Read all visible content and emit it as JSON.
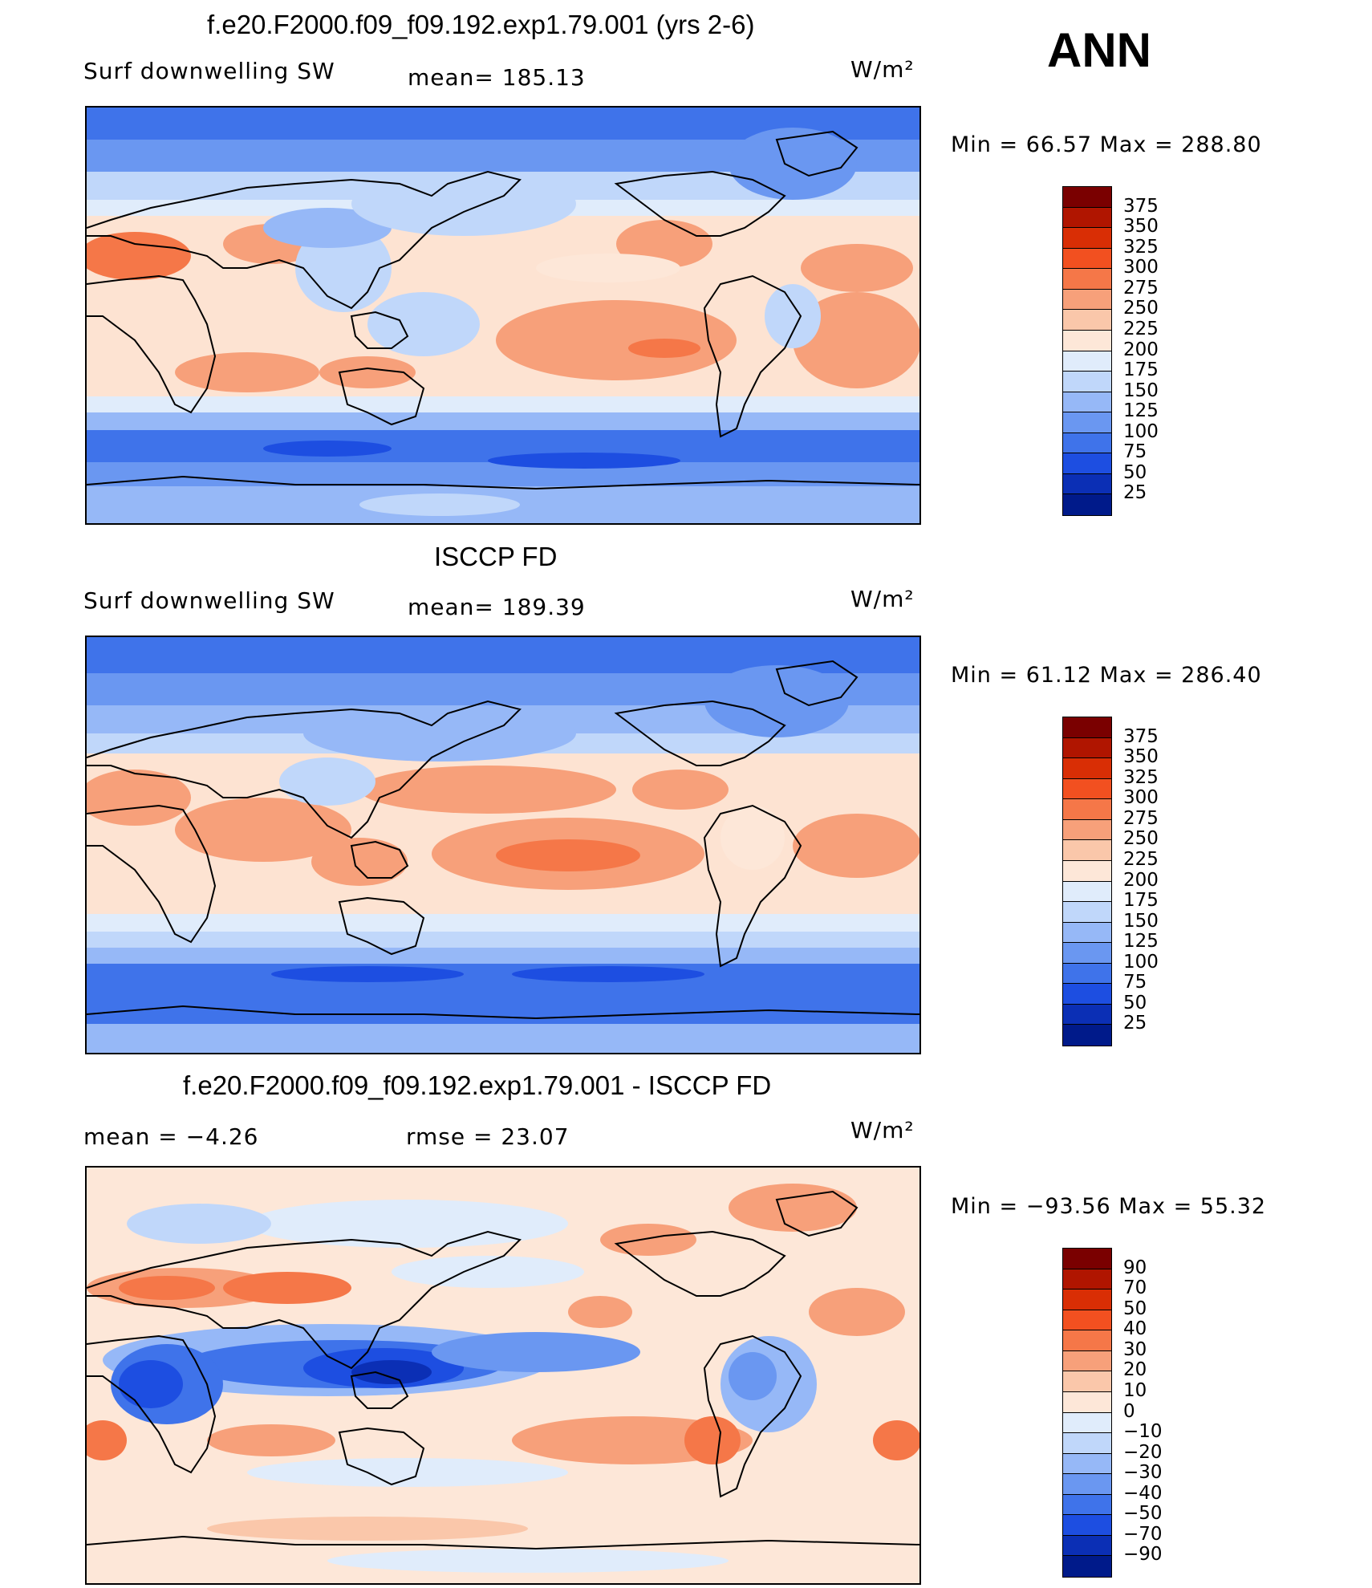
{
  "season": "ANN",
  "units": "W/m²",
  "panels": [
    {
      "title": "f.e20.F2000.f09_f09.192.exp1.79.001 (yrs 2-6)",
      "left_label": "Surf  downwelling  SW",
      "center_label": "mean=  185.13",
      "minmax": "Min  =    66.57  Max  =  288.80",
      "colorbar": {
        "labels": [
          "375",
          "350",
          "325",
          "300",
          "275",
          "250",
          "225",
          "200",
          "175",
          "150",
          "125",
          "100",
          "75",
          "50",
          "25"
        ],
        "colors": [
          "#7a0000",
          "#b01500",
          "#d92e05",
          "#f25020",
          "#f57748",
          "#f7a07a",
          "#fac7aa",
          "#fde7d8",
          "#e0ecfb",
          "#c0d7fa",
          "#96b8f7",
          "#6a97f1",
          "#3f73ea",
          "#1d4ee1",
          "#0b2fb5",
          "#001a8a"
        ]
      }
    },
    {
      "title": "ISCCP FD",
      "left_label": "Surf  downwelling  SW",
      "center_label": "mean=  189.39",
      "minmax": "Min  =    61.12  Max  =  286.40",
      "colorbar": {
        "labels": [
          "375",
          "350",
          "325",
          "300",
          "275",
          "250",
          "225",
          "200",
          "175",
          "150",
          "125",
          "100",
          "75",
          "50",
          "25"
        ],
        "colors": [
          "#7a0000",
          "#b01500",
          "#d92e05",
          "#f25020",
          "#f57748",
          "#f7a07a",
          "#fac7aa",
          "#fde7d8",
          "#e0ecfb",
          "#c0d7fa",
          "#96b8f7",
          "#6a97f1",
          "#3f73ea",
          "#1d4ee1",
          "#0b2fb5",
          "#001a8a"
        ]
      }
    },
    {
      "title": "f.e20.F2000.f09_f09.192.exp1.79.001 - ISCCP FD",
      "left_label": "mean  =    −4.26",
      "center_label": "rmse  =    23.07",
      "minmax": "Min  =  −93.56  Max  =    55.32",
      "colorbar": {
        "labels": [
          "90",
          "70",
          "50",
          "40",
          "30",
          "20",
          "10",
          "0",
          "−10",
          "−20",
          "−30",
          "−40",
          "−50",
          "−70",
          "−90"
        ],
        "colors": [
          "#7a0000",
          "#b01500",
          "#d92e05",
          "#f25020",
          "#f57748",
          "#f7a07a",
          "#fac7aa",
          "#fde7d8",
          "#e0ecfb",
          "#c0d7fa",
          "#96b8f7",
          "#6a97f1",
          "#3f73ea",
          "#1d4ee1",
          "#0b2fb5",
          "#001a8a"
        ]
      }
    }
  ]
}
